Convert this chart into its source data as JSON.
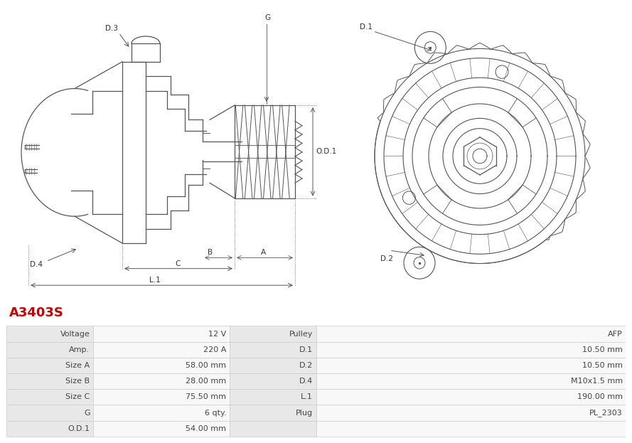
{
  "title": "A3403S",
  "title_color": "#cc0000",
  "table_rows": [
    [
      "Voltage",
      "12 V",
      "Pulley",
      "AFP"
    ],
    [
      "Amp.",
      "220 A",
      "D.1",
      "10.50 mm"
    ],
    [
      "Size A",
      "58.00 mm",
      "D.2",
      "10.50 mm"
    ],
    [
      "Size B",
      "28.00 mm",
      "D.4",
      "M10x1.5 mm"
    ],
    [
      "Size C",
      "75.50 mm",
      "L.1",
      "190.00 mm"
    ],
    [
      "G",
      "6 qty.",
      "Plug",
      "PL_2303"
    ],
    [
      "O.D.1",
      "54.00 mm",
      "",
      ""
    ]
  ],
  "lc": "#555555",
  "lw": 0.9,
  "row_bg_label": "#e8e8e8",
  "row_bg_value": "#f5f5f5",
  "border_color": "#cccccc",
  "text_color": "#444444",
  "background_color": "#ffffff"
}
